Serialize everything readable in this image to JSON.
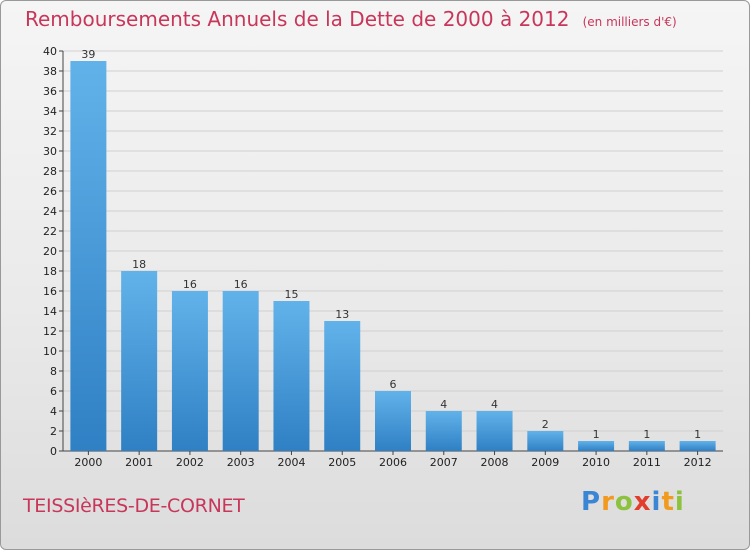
{
  "header": {
    "title": "Remboursements Annuels de la Dette de 2000 à 2012",
    "unit_note": "(en milliers d'€)"
  },
  "footer": {
    "commune": "TEISSIèRES-DE-CORNET",
    "brand": [
      "P",
      "r",
      "o",
      "x",
      "i",
      "t",
      "i"
    ]
  },
  "colors": {
    "title": "#c8365a",
    "bar_light": "#62b2ea",
    "bar_dark": "#2f80c4",
    "brand_letters": [
      "#3b86d4",
      "#f29a1e",
      "#8dc23f",
      "#e23c2a",
      "#3b86d4",
      "#f29a1e",
      "#8dc23f"
    ]
  },
  "chart_data": {
    "type": "bar",
    "categories": [
      "2000",
      "2001",
      "2002",
      "2003",
      "2004",
      "2005",
      "2006",
      "2007",
      "2008",
      "2009",
      "2010",
      "2011",
      "2012"
    ],
    "values": [
      39,
      18,
      16,
      16,
      15,
      13,
      6,
      4,
      4,
      2,
      1,
      1,
      1
    ],
    "ylim": [
      0,
      40
    ],
    "yticks": [
      0,
      2,
      4,
      6,
      8,
      10,
      12,
      14,
      16,
      18,
      20,
      22,
      24,
      26,
      28,
      30,
      32,
      34,
      36,
      38,
      40
    ],
    "grid": true,
    "data_labels": true
  }
}
